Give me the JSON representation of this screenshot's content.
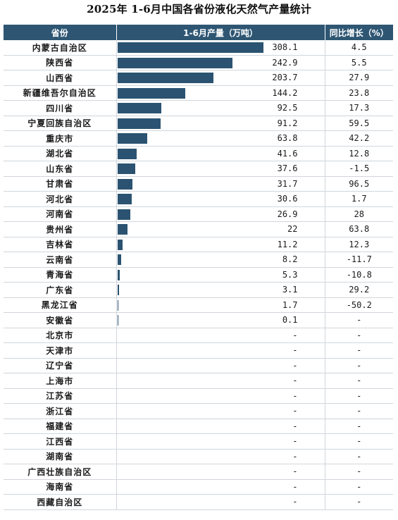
{
  "chart_data": {
    "type": "table",
    "title": "2025年 1-6月中国各省份液化天然气产量统计",
    "columns": [
      "省份",
      "1-6月产量（万吨）",
      "同比增长（%）"
    ],
    "rows": [
      {
        "province": "内蒙古自治区",
        "output": "308.1",
        "yoy": "4.5"
      },
      {
        "province": "陕西省",
        "output": "242.9",
        "yoy": "5.5"
      },
      {
        "province": "山西省",
        "output": "203.7",
        "yoy": "27.9"
      },
      {
        "province": "新疆维吾尔自治区",
        "output": "144.2",
        "yoy": "23.8"
      },
      {
        "province": "四川省",
        "output": "92.5",
        "yoy": "17.3"
      },
      {
        "province": "宁夏回族自治区",
        "output": "91.2",
        "yoy": "59.5"
      },
      {
        "province": "重庆市",
        "output": "63.8",
        "yoy": "42.2"
      },
      {
        "province": "湖北省",
        "output": "41.6",
        "yoy": "12.8"
      },
      {
        "province": "山东省",
        "output": "37.6",
        "yoy": "-1.5"
      },
      {
        "province": "甘肃省",
        "output": "31.7",
        "yoy": "96.5"
      },
      {
        "province": "河北省",
        "output": "30.6",
        "yoy": "1.7"
      },
      {
        "province": "河南省",
        "output": "26.9",
        "yoy": "28"
      },
      {
        "province": "贵州省",
        "output": "22",
        "yoy": "63.8"
      },
      {
        "province": "吉林省",
        "output": "11.2",
        "yoy": "12.3"
      },
      {
        "province": "云南省",
        "output": "8.2",
        "yoy": "-11.7"
      },
      {
        "province": "青海省",
        "output": "5.3",
        "yoy": "-10.8"
      },
      {
        "province": "广东省",
        "output": "3.1",
        "yoy": "29.2"
      },
      {
        "province": "黑龙江省",
        "output": "1.7",
        "yoy": "-50.2"
      },
      {
        "province": "安徽省",
        "output": "0.1",
        "yoy": "-"
      },
      {
        "province": "北京市",
        "output": "-",
        "yoy": "-"
      },
      {
        "province": "天津市",
        "output": "-",
        "yoy": "-"
      },
      {
        "province": "辽宁省",
        "output": "-",
        "yoy": "-"
      },
      {
        "province": "上海市",
        "output": "-",
        "yoy": "-"
      },
      {
        "province": "江苏省",
        "output": "-",
        "yoy": "-"
      },
      {
        "province": "浙江省",
        "output": "-",
        "yoy": "-"
      },
      {
        "province": "福建省",
        "output": "-",
        "yoy": "-"
      },
      {
        "province": "江西省",
        "output": "-",
        "yoy": "-"
      },
      {
        "province": "湖南省",
        "output": "-",
        "yoy": "-"
      },
      {
        "province": "广西壮族自治区",
        "output": "-",
        "yoy": "-"
      },
      {
        "province": "海南省",
        "output": "-",
        "yoy": "-"
      },
      {
        "province": "西藏自治区",
        "output": "-",
        "yoy": "-"
      }
    ],
    "bar_max": 308.1,
    "colors": {
      "header_bg": "#2e5673",
      "bar": "#2b5371",
      "header_text": "#ffffff"
    }
  }
}
